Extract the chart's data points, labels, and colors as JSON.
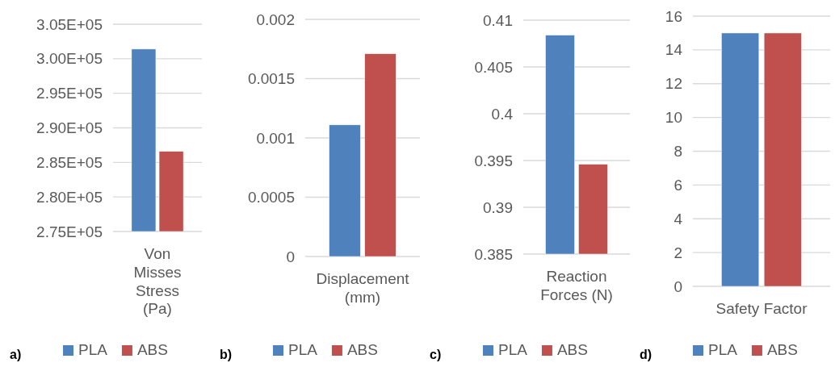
{
  "chart_data": [
    {
      "type": "bar",
      "categories": [
        "Von Misses Stress (Pa)"
      ],
      "series": [
        {
          "name": "PLA",
          "color": "#4f81bd",
          "values": [
            301400
          ]
        },
        {
          "name": "ABS",
          "color": "#c0504d",
          "values": [
            286600
          ]
        }
      ],
      "ylim": [
        275000,
        305000
      ],
      "yticks": [
        {
          "value": 275000,
          "label": "2.75E+05"
        },
        {
          "value": 280000,
          "label": "2.80E+05"
        },
        {
          "value": 285000,
          "label": "2.85E+05"
        },
        {
          "value": 290000,
          "label": "2.90E+05"
        },
        {
          "value": 295000,
          "label": "2.95E+05"
        },
        {
          "value": 300000,
          "label": "3.00E+05"
        },
        {
          "value": 305000,
          "label": "3.05E+05"
        }
      ],
      "grid": "y",
      "legend": "bottom",
      "annotations": [
        "a)"
      ]
    },
    {
      "type": "bar",
      "categories": [
        "Displacement (mm)"
      ],
      "series": [
        {
          "name": "PLA",
          "color": "#4f81bd",
          "values": [
            0.00111
          ]
        },
        {
          "name": "ABS",
          "color": "#c0504d",
          "values": [
            0.00171
          ]
        }
      ],
      "ylim": [
        0,
        0.002
      ],
      "yticks": [
        0,
        0.0005,
        0.001,
        0.0015,
        0.002
      ],
      "grid": "y",
      "legend": "bottom",
      "annotations": [
        "b)"
      ]
    },
    {
      "type": "bar",
      "categories": [
        "Reaction Forces (N)"
      ],
      "series": [
        {
          "name": "PLA",
          "color": "#4f81bd",
          "values": [
            0.4084
          ]
        },
        {
          "name": "ABS",
          "color": "#c0504d",
          "values": [
            0.3946
          ]
        }
      ],
      "ylim": [
        0.385,
        0.41
      ],
      "yticks": [
        0.385,
        0.39,
        0.395,
        0.4,
        0.405,
        0.41
      ],
      "grid": "y",
      "legend": "bottom",
      "annotations": [
        "c)"
      ]
    },
    {
      "type": "bar",
      "categories": [
        "Safety Factor"
      ],
      "series": [
        {
          "name": "PLA",
          "color": "#4f81bd",
          "values": [
            15
          ]
        },
        {
          "name": "ABS",
          "color": "#c0504d",
          "values": [
            15
          ]
        }
      ],
      "ylim": [
        0,
        16
      ],
      "yticks": [
        0,
        2,
        4,
        6,
        8,
        10,
        12,
        14,
        16
      ],
      "grid": "y",
      "legend": "bottom",
      "annotations": [
        "d)"
      ]
    }
  ]
}
